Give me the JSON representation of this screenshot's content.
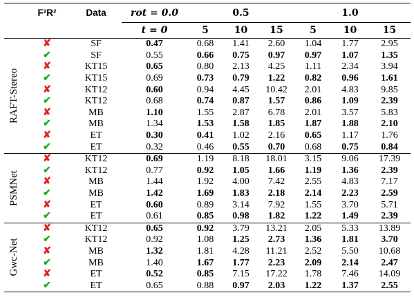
{
  "header": {
    "col_f2r2": "F²R²",
    "col_data": "Data",
    "col_rot0": "rot = 0.0",
    "col_t0": "t = 0",
    "col_rot05": "0.5",
    "col_rot10": "1.0",
    "sub": [
      "5",
      "10",
      "15",
      "5",
      "10",
      "15"
    ]
  },
  "marks": {
    "cross": "✘",
    "check": "✔"
  },
  "groups": [
    {
      "name": "RAFT-Stereo",
      "rows": [
        {
          "flag": "x",
          "data": "SF",
          "t0": "0.47",
          "r05": [
            "0.68",
            "1.41",
            "2.60"
          ],
          "r10": [
            "1.04",
            "1.77",
            "2.95"
          ],
          "bold": [
            1,
            0,
            0,
            0,
            0,
            0,
            0
          ]
        },
        {
          "flag": "v",
          "data": "SF",
          "t0": "0.55",
          "r05": [
            "0.66",
            "0.75",
            "0.97"
          ],
          "r10": [
            "0.97",
            "1.07",
            "1.35"
          ],
          "bold": [
            0,
            1,
            1,
            1,
            1,
            1,
            1
          ]
        },
        {
          "flag": "x",
          "data": "KT15",
          "t0": "0.65",
          "r05": [
            "0.80",
            "2.13",
            "4.25"
          ],
          "r10": [
            "1.11",
            "2.34",
            "3.94"
          ],
          "bold": [
            1,
            0,
            0,
            0,
            0,
            0,
            0
          ]
        },
        {
          "flag": "v",
          "data": "KT15",
          "t0": "0.69",
          "r05": [
            "0.73",
            "0.79",
            "1.22"
          ],
          "r10": [
            "0.82",
            "0.96",
            "1.61"
          ],
          "bold": [
            0,
            1,
            1,
            1,
            1,
            1,
            1
          ]
        },
        {
          "flag": "x",
          "data": "KT12",
          "t0": "0.60",
          "r05": [
            "0.94",
            "4.45",
            "10.42"
          ],
          "r10": [
            "2.01",
            "4.83",
            "9.85"
          ],
          "bold": [
            1,
            0,
            0,
            0,
            0,
            0,
            0
          ]
        },
        {
          "flag": "v",
          "data": "KT12",
          "t0": "0.68",
          "r05": [
            "0.74",
            "0.87",
            "1.57"
          ],
          "r10": [
            "0.86",
            "1.09",
            "2.39"
          ],
          "bold": [
            0,
            1,
            1,
            1,
            1,
            1,
            1
          ]
        },
        {
          "flag": "x",
          "data": "MB",
          "t0": "1.10",
          "r05": [
            "1.55",
            "2.87",
            "6.78"
          ],
          "r10": [
            "2.01",
            "3.57",
            "5.83"
          ],
          "bold": [
            1,
            0,
            0,
            0,
            0,
            0,
            0
          ]
        },
        {
          "flag": "v",
          "data": "MB",
          "t0": "1.34",
          "r05": [
            "1.53",
            "1.58",
            "1.85"
          ],
          "r10": [
            "1.87",
            "1.88",
            "2.10"
          ],
          "bold": [
            0,
            1,
            1,
            1,
            1,
            1,
            1
          ]
        },
        {
          "flag": "x",
          "data": "ET",
          "t0": "0.30",
          "r05": [
            "0.41",
            "1.02",
            "2.16"
          ],
          "r10": [
            "0.65",
            "1.17",
            "1.76"
          ],
          "bold": [
            1,
            1,
            0,
            0,
            1,
            0,
            0
          ]
        },
        {
          "flag": "v",
          "data": "ET",
          "t0": "0.32",
          "r05": [
            "0.46",
            "0.55",
            "0.70"
          ],
          "r10": [
            "0.68",
            "0.75",
            "0.84"
          ],
          "bold": [
            0,
            0,
            1,
            1,
            0,
            1,
            1
          ]
        }
      ]
    },
    {
      "name": "PSMNet",
      "rows": [
        {
          "flag": "x",
          "data": "KT12",
          "t0": "0.69",
          "r05": [
            "1.19",
            "8.18",
            "18.01"
          ],
          "r10": [
            "3.15",
            "9.06",
            "17.39"
          ],
          "bold": [
            1,
            0,
            0,
            0,
            0,
            0,
            0
          ]
        },
        {
          "flag": "v",
          "data": "KT12",
          "t0": "0.77",
          "r05": [
            "0.92",
            "1.05",
            "1.66"
          ],
          "r10": [
            "1.19",
            "1.36",
            "2.39"
          ],
          "bold": [
            0,
            1,
            1,
            1,
            1,
            1,
            1
          ]
        },
        {
          "flag": "x",
          "data": "MB",
          "t0": "1.44",
          "r05": [
            "1.92",
            "4.00",
            "7.42"
          ],
          "r10": [
            "2.55",
            "4.83",
            "7.17"
          ],
          "bold": [
            0,
            0,
            0,
            0,
            0,
            0,
            0
          ]
        },
        {
          "flag": "v",
          "data": "MB",
          "t0": "1.42",
          "r05": [
            "1.69",
            "1.83",
            "2.18"
          ],
          "r10": [
            "2.14",
            "2.23",
            "2.59"
          ],
          "bold": [
            1,
            1,
            1,
            1,
            1,
            1,
            1
          ]
        },
        {
          "flag": "x",
          "data": "ET",
          "t0": "0.60",
          "r05": [
            "0.89",
            "3.14",
            "7.92"
          ],
          "r10": [
            "1.55",
            "3.70",
            "5.71"
          ],
          "bold": [
            1,
            0,
            0,
            0,
            0,
            0,
            0
          ]
        },
        {
          "flag": "v",
          "data": "ET",
          "t0": "0.61",
          "r05": [
            "0.85",
            "0.98",
            "1.82"
          ],
          "r10": [
            "1.22",
            "1.49",
            "2.39"
          ],
          "bold": [
            0,
            1,
            1,
            1,
            1,
            1,
            1
          ]
        }
      ]
    },
    {
      "name": "Gwc-Net",
      "rows": [
        {
          "flag": "x",
          "data": "KT12",
          "t0": "0.65",
          "r05": [
            "0.92",
            "3.79",
            "13.21"
          ],
          "r10": [
            "2.05",
            "5.33",
            "13.89"
          ],
          "bold": [
            1,
            1,
            0,
            0,
            0,
            0,
            0
          ]
        },
        {
          "flag": "v",
          "data": "KT12",
          "t0": "0.92",
          "r05": [
            "1.08",
            "1.25",
            "2.73"
          ],
          "r10": [
            "1.36",
            "1.81",
            "3.70"
          ],
          "bold": [
            0,
            0,
            1,
            1,
            1,
            1,
            1
          ]
        },
        {
          "flag": "x",
          "data": "MB",
          "t0": "1.32",
          "r05": [
            "1.81",
            "4.28",
            "11.21"
          ],
          "r10": [
            "2.52",
            "5.50",
            "10.68"
          ],
          "bold": [
            1,
            0,
            0,
            0,
            0,
            0,
            0
          ]
        },
        {
          "flag": "v",
          "data": "MB",
          "t0": "1.40",
          "r05": [
            "1.67",
            "1.77",
            "2.23"
          ],
          "r10": [
            "2.09",
            "2.14",
            "2.47"
          ],
          "bold": [
            0,
            1,
            1,
            1,
            1,
            1,
            1
          ]
        },
        {
          "flag": "x",
          "data": "ET",
          "t0": "0.52",
          "r05": [
            "0.85",
            "7.15",
            "17.22"
          ],
          "r10": [
            "1.78",
            "7.46",
            "14.09"
          ],
          "bold": [
            1,
            1,
            0,
            0,
            0,
            0,
            0
          ]
        },
        {
          "flag": "v",
          "data": "ET",
          "t0": "0.65",
          "r05": [
            "0.88",
            "0.97",
            "2.03"
          ],
          "r10": [
            "1.22",
            "1.37",
            "2.55"
          ],
          "bold": [
            0,
            0,
            1,
            1,
            1,
            1,
            1
          ]
        }
      ]
    }
  ]
}
